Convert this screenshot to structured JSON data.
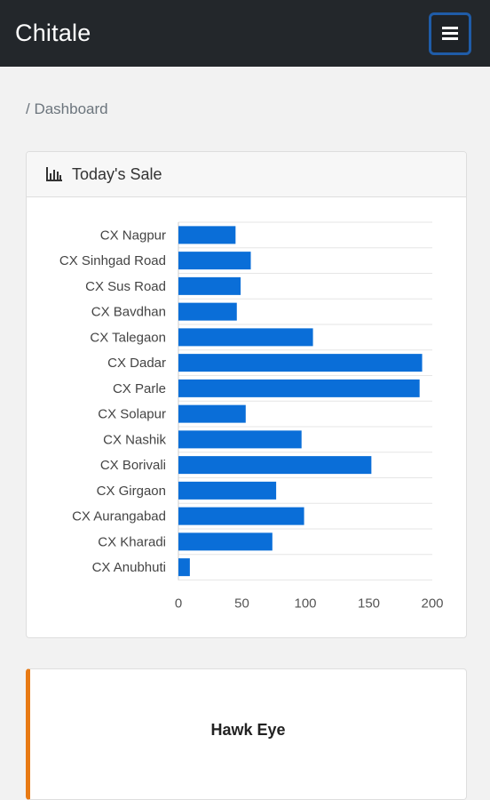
{
  "navbar": {
    "brand": "Chitale",
    "menu_icon": "hamburger-menu-icon"
  },
  "breadcrumb": {
    "text": "/ Dashboard"
  },
  "sale_card": {
    "title": "Today's Sale",
    "icon": "bar-chart-icon"
  },
  "chart_data": {
    "type": "bar",
    "orientation": "horizontal",
    "categories": [
      "CX Nagpur",
      "CX Sinhgad Road",
      "CX Sus Road",
      "CX Bavdhan",
      "CX Talegaon",
      "CX Dadar",
      "CX Parle",
      "CX Solapur",
      "CX Nashik",
      "CX Borivali",
      "CX Girgaon",
      "CX Aurangabad",
      "CX Kharadi",
      "CX Anubhuti"
    ],
    "values": [
      45,
      57,
      49,
      46,
      106,
      192,
      190,
      53,
      97,
      152,
      77,
      99,
      74,
      9
    ],
    "xlim": [
      0,
      200
    ],
    "xticks": [
      "0",
      "50",
      "100",
      "150",
      "200"
    ],
    "bar_color": "#0a6ed8",
    "grid": true,
    "legend": "none"
  },
  "hawk_card": {
    "title": "Hawk Eye",
    "accent_color": "#e87a14"
  }
}
